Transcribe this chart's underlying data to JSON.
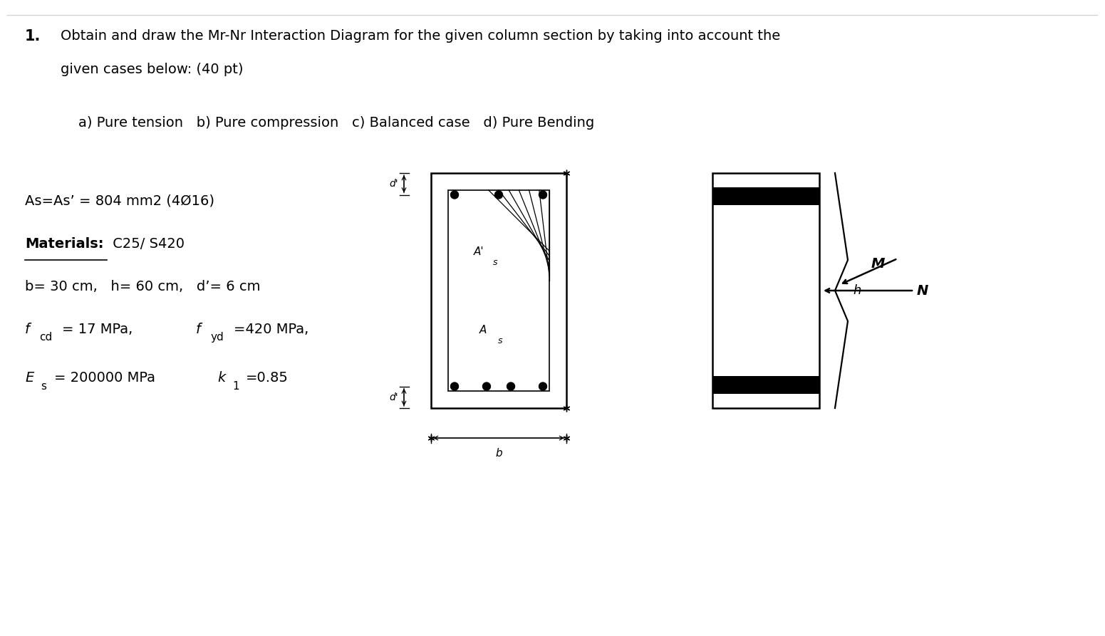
{
  "bg_color": "#ffffff",
  "title_number": "1.",
  "title_text_line1": "Obtain and draw the Mr-Nr Interaction Diagram for the given column section by taking into account the",
  "title_text_line2": "given cases below: (40 pt)",
  "cases_text": "a) Pure tension   b) Pure compression   c) Balanced case   d) Pure Bending",
  "line1": "As=As’ = 804 mm2 (4Ø16)",
  "line2_bold": "Materials:",
  "line2_rest": " C25/ S420",
  "line3": "b= 30 cm,   h= 60 cm,   d’= 6 cm",
  "font_size_main": 14
}
